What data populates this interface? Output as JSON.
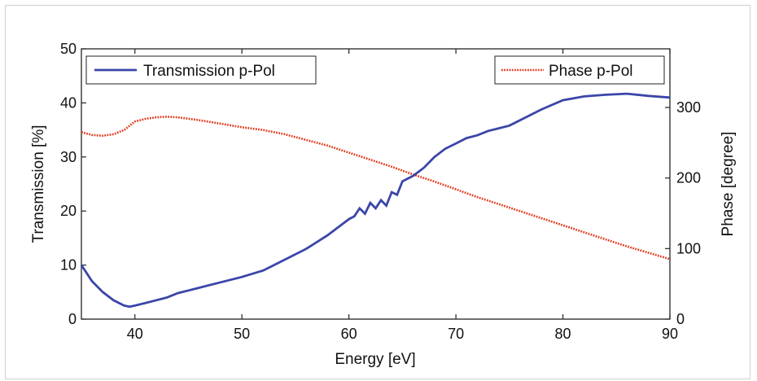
{
  "chart_data": {
    "type": "line",
    "title": "",
    "xlabel": "Energy [eV]",
    "ylabel_left": "Transmission [%]",
    "ylabel_right": "Phase [degree]",
    "xlim": [
      35,
      90
    ],
    "ylim_left": [
      0,
      50
    ],
    "ylim_right": [
      0,
      300
    ],
    "x_ticks": [
      40,
      50,
      60,
      70,
      80,
      90
    ],
    "y_left_ticks": [
      0,
      10,
      20,
      30,
      40,
      50
    ],
    "y_right_ticks": [
      0,
      100,
      200,
      300
    ],
    "grid": false,
    "series": [
      {
        "name": "Transmission p-Pol",
        "axis": "left",
        "color": "#3a46a8",
        "style": "solid",
        "legend_position": "top-left",
        "x": [
          35,
          36,
          37,
          38,
          39,
          39.5,
          40,
          41,
          42,
          43,
          44,
          45,
          46,
          48,
          50,
          52,
          54,
          56,
          58,
          60,
          60.5,
          61,
          61.5,
          62,
          62.5,
          63,
          63.5,
          64,
          64.5,
          65,
          66,
          67,
          68,
          69,
          70,
          71,
          72,
          73,
          74,
          75,
          76,
          78,
          80,
          82,
          84,
          86,
          88,
          90
        ],
        "y": [
          10,
          7,
          5,
          3.5,
          2.5,
          2.3,
          2.5,
          3,
          3.5,
          4,
          4.8,
          5.3,
          5.8,
          6.8,
          7.8,
          9,
          11,
          13,
          15.5,
          18.5,
          19,
          20.5,
          19.5,
          21.5,
          20.5,
          22,
          21,
          23.5,
          23,
          25.5,
          26.5,
          28,
          30,
          31.5,
          32.5,
          33.5,
          34,
          34.8,
          35.3,
          35.8,
          36.8,
          38.8,
          40.5,
          41.2,
          41.5,
          41.7,
          41.3,
          41
        ]
      },
      {
        "name": "Phase p-Pol",
        "axis": "right",
        "color": "#e03c1e",
        "style": "dotted",
        "legend_position": "top-right",
        "x": [
          35,
          36,
          37,
          38,
          39,
          40,
          41,
          42,
          43,
          44,
          46,
          48,
          50,
          52,
          54,
          56,
          58,
          60,
          62,
          64,
          66,
          68,
          70,
          72,
          74,
          76,
          78,
          80,
          82,
          84,
          86,
          88,
          90
        ],
        "y": [
          265,
          261,
          260,
          262,
          268,
          280,
          284,
          286,
          287,
          286,
          282,
          277,
          272,
          268,
          262,
          254,
          246,
          236,
          226,
          216,
          205,
          195,
          184,
          173,
          163,
          153,
          143,
          133,
          123,
          113,
          103,
          94,
          85
        ]
      }
    ]
  }
}
